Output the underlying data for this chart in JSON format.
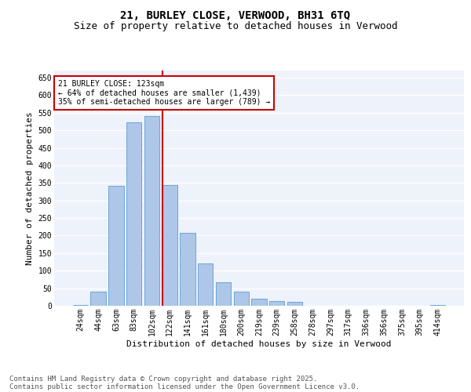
{
  "title1": "21, BURLEY CLOSE, VERWOOD, BH31 6TQ",
  "title2": "Size of property relative to detached houses in Verwood",
  "xlabel": "Distribution of detached houses by size in Verwood",
  "ylabel": "Number of detached properties",
  "categories": [
    "24sqm",
    "44sqm",
    "63sqm",
    "83sqm",
    "102sqm",
    "122sqm",
    "141sqm",
    "161sqm",
    "180sqm",
    "200sqm",
    "219sqm",
    "239sqm",
    "258sqm",
    "278sqm",
    "297sqm",
    "317sqm",
    "336sqm",
    "356sqm",
    "375sqm",
    "395sqm",
    "414sqm"
  ],
  "values": [
    2,
    41,
    341,
    522,
    540,
    345,
    207,
    120,
    67,
    40,
    20,
    13,
    12,
    0,
    1,
    0,
    0,
    0,
    0,
    1,
    2
  ],
  "bar_color": "#aec6e8",
  "bar_edge_color": "#5a9fd4",
  "property_line_index": 5,
  "property_line_color": "#cc0000",
  "annotation_text": "21 BURLEY CLOSE: 123sqm\n← 64% of detached houses are smaller (1,439)\n35% of semi-detached houses are larger (789) →",
  "annotation_box_color": "#cc0000",
  "ylim": [
    0,
    670
  ],
  "yticks": [
    0,
    50,
    100,
    150,
    200,
    250,
    300,
    350,
    400,
    450,
    500,
    550,
    600,
    650
  ],
  "footer_line1": "Contains HM Land Registry data © Crown copyright and database right 2025.",
  "footer_line2": "Contains public sector information licensed under the Open Government Licence v3.0.",
  "background_color": "#eef2fb",
  "grid_color": "#ffffff",
  "title_fontsize": 10,
  "subtitle_fontsize": 9,
  "tick_fontsize": 7,
  "label_fontsize": 8,
  "annotation_fontsize": 7,
  "footer_fontsize": 6.5
}
